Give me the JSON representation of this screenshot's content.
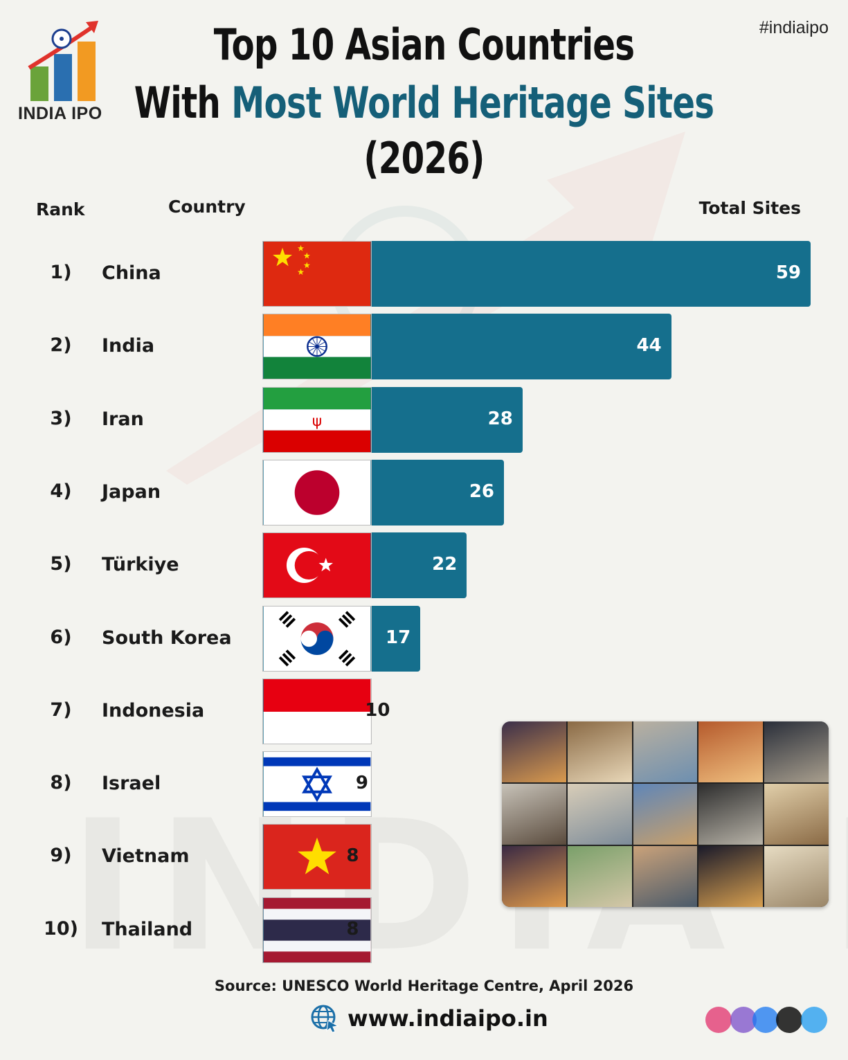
{
  "brand": {
    "logo_text": "INDIA IPO",
    "hashtag": "#indiaipo",
    "watermark": "INDIA IPO"
  },
  "title": {
    "line1": "Top 10 Asian Countries",
    "line2_prefix": "With ",
    "line2_accent": "Most World Heritage Sites",
    "line3": "(2026)",
    "accent_color": "#155f78"
  },
  "columns": {
    "rank": "Rank",
    "country": "Country",
    "total": "Total Sites"
  },
  "chart_data": {
    "type": "bar",
    "orientation": "horizontal",
    "categories": [
      "China",
      "India",
      "Iran",
      "Japan",
      "Türkiye",
      "South Korea",
      "Indonesia",
      "Israel",
      "Vietnam",
      "Thailand"
    ],
    "ranks": [
      "1)",
      "2)",
      "3)",
      "4)",
      "5)",
      "6)",
      "7)",
      "8)",
      "9)",
      "10)"
    ],
    "values": [
      59,
      44,
      28,
      26,
      22,
      17,
      10,
      9,
      8,
      8
    ],
    "bar_color": "#156f8d",
    "title": "Top 10 Asian Countries With Most World Heritage Sites (2026)",
    "xlabel": "Total Sites",
    "ylabel": "Country",
    "xlim": [
      0,
      59
    ]
  },
  "footer": {
    "source": "Source: UNESCO World Heritage Centre, April 2026",
    "website": "www.indiaipo.in"
  },
  "icons": {
    "logo": "india-ipo-logo-icon",
    "globe": "globe-icon",
    "social": "social-media-icons"
  }
}
